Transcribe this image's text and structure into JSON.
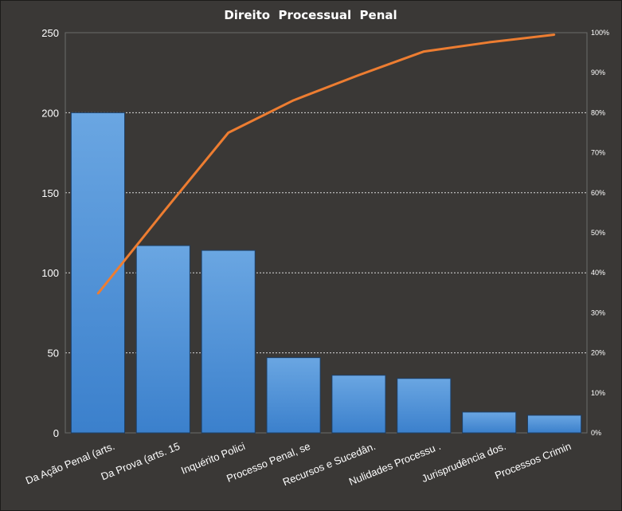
{
  "chart_data": {
    "type": "bar",
    "title": "Direito  Processual  Penal",
    "categories": [
      "Da Ação Penal (arts.",
      "Da Prova  (arts. 15",
      "Inquérito  Polici",
      "Processo Penal, se",
      "Recursos e Sucedân.",
      "Nulidades Processu .",
      "Jurisprudência  dos.",
      "Processos Crimin"
    ],
    "series": [
      {
        "type": "bar",
        "axis": "left",
        "values": [
          200,
          117,
          114,
          47,
          36,
          34,
          13,
          11
        ],
        "color": "#4a90d9"
      },
      {
        "type": "line",
        "axis": "right",
        "values": [
          34.8,
          55.1,
          75.0,
          83.1,
          89.4,
          95.3,
          97.6,
          99.5
        ],
        "color": "#ed7d31"
      }
    ],
    "y_left": {
      "ticks": [
        "0",
        "50",
        "100",
        "150",
        "200",
        "250"
      ],
      "ylim": [
        0,
        250
      ]
    },
    "y_right": {
      "ticks": [
        "0%",
        "10%",
        "20%",
        "30%",
        "40%",
        "50%",
        "60%",
        "70%",
        "80%",
        "90%",
        "100%"
      ],
      "ylim": [
        0,
        100
      ]
    },
    "grid": true,
    "legend": "none",
    "colors": {
      "background": "#3a3836",
      "plot_border": "#6b6b6b",
      "grid": "#d8d8d8",
      "bar_top": "#6aa6e2",
      "bar_bottom": "#3b80cc",
      "line": "#ed7d31",
      "text": "#ffffff"
    }
  }
}
